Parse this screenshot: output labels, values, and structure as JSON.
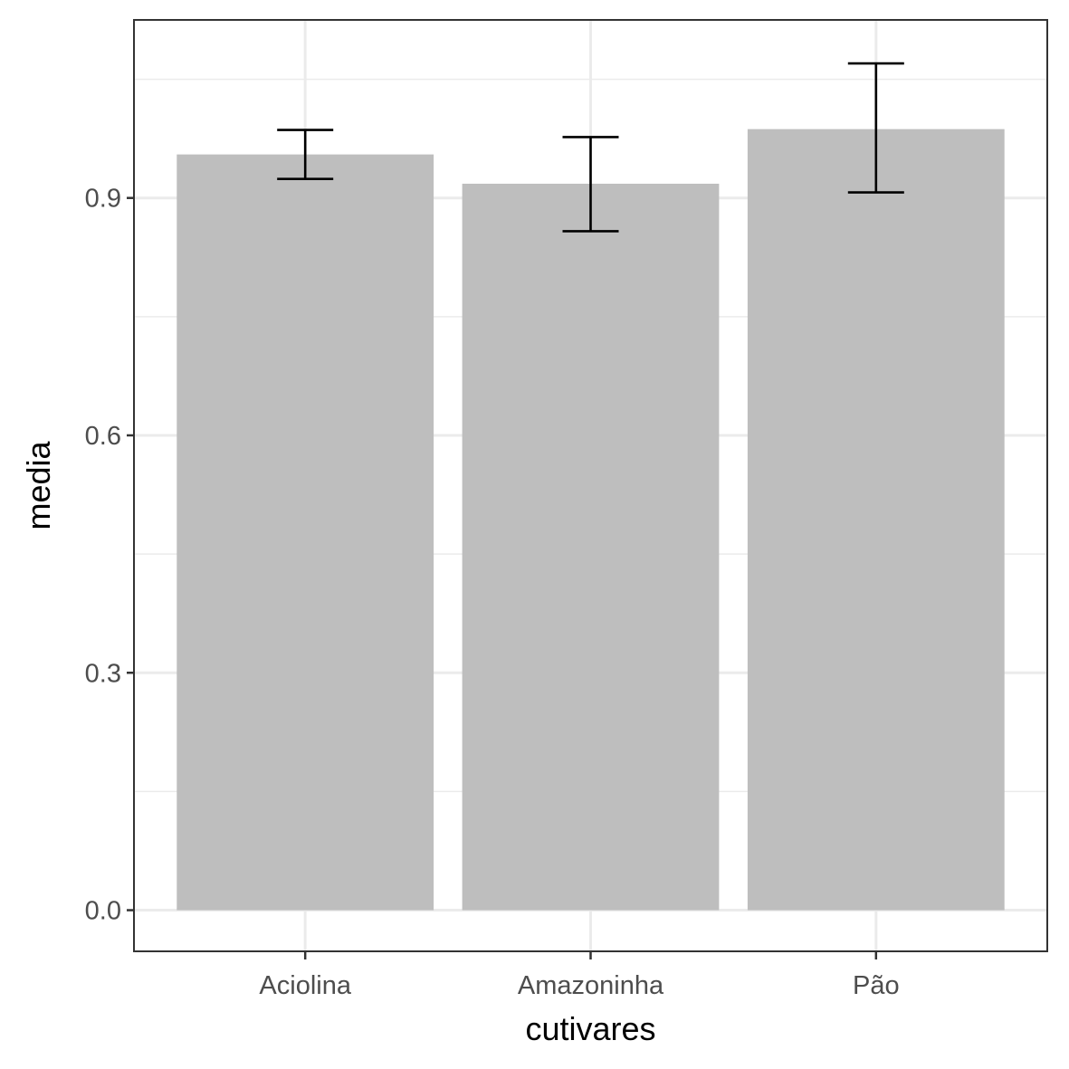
{
  "chart_data": {
    "type": "bar",
    "title": "",
    "xlabel": "cutivares",
    "ylabel": "media",
    "categories": [
      "Aciolina",
      "Amazoninha",
      "Pão"
    ],
    "values": [
      0.955,
      0.918,
      0.987
    ],
    "error_bars": [
      {
        "low": 0.924,
        "high": 0.986
      },
      {
        "low": 0.858,
        "high": 0.977
      },
      {
        "low": 0.907,
        "high": 1.07
      }
    ],
    "ylim": [
      -0.052,
      1.125
    ],
    "yticks": [
      0.0,
      0.3,
      0.6,
      0.9
    ],
    "ytick_labels": [
      "0.0",
      "0.3",
      "0.6",
      "0.9"
    ],
    "yminor": [
      0.15,
      0.45,
      0.75,
      1.05
    ],
    "grid": true,
    "legend": "none",
    "colors": {
      "bar": "#bebebe",
      "errorbar": "#000000",
      "grid": "#ebebeb",
      "panel_border": "#333333",
      "tick_text": "#4d4d4d"
    }
  }
}
